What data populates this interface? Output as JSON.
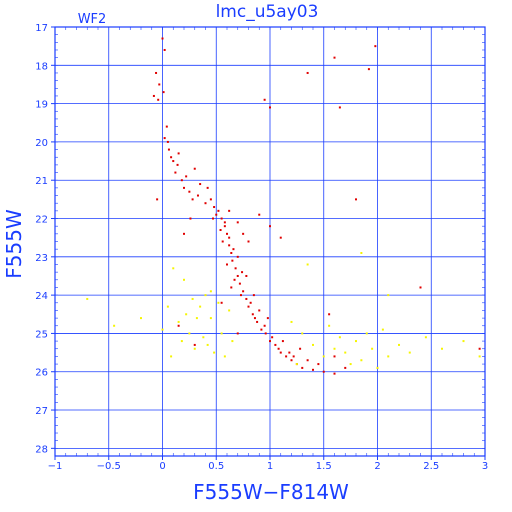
{
  "chart_data": {
    "type": "scatter",
    "title": "lmc_u5ay03",
    "chip_label": "WF2",
    "xlabel": "F555W−F814W",
    "ylabel": "F555W",
    "xlim": [
      -1,
      3
    ],
    "ylim": [
      28.2,
      17
    ],
    "y_inverted": true,
    "grid": true,
    "x_ticks": [
      {
        "value": -1,
        "label": "−1"
      },
      {
        "value": -0.5,
        "label": "−0.5"
      },
      {
        "value": 0,
        "label": "0"
      },
      {
        "value": 0.5,
        "label": "0.5"
      },
      {
        "value": 1,
        "label": "1"
      },
      {
        "value": 1.5,
        "label": "1.5"
      },
      {
        "value": 2,
        "label": "2"
      },
      {
        "value": 2.5,
        "label": "2.5"
      },
      {
        "value": 3,
        "label": "3"
      }
    ],
    "y_ticks": [
      {
        "value": 17,
        "label": "17"
      },
      {
        "value": 18,
        "label": "18"
      },
      {
        "value": 19,
        "label": "19"
      },
      {
        "value": 20,
        "label": "20"
      },
      {
        "value": 21,
        "label": "21"
      },
      {
        "value": 22,
        "label": "22"
      },
      {
        "value": 23,
        "label": "23"
      },
      {
        "value": 24,
        "label": "24"
      },
      {
        "value": 25,
        "label": "25"
      },
      {
        "value": 26,
        "label": "26"
      },
      {
        "value": 27,
        "label": "27"
      },
      {
        "value": 28,
        "label": "28"
      }
    ],
    "colors": {
      "axis": "#1a3dff",
      "grid": "#1a3dff",
      "series_red": "#e00000",
      "series_yellow": "#f5f500"
    },
    "series": [
      {
        "color": "#e00000",
        "points": [
          [
            -0.06,
            18.2
          ],
          [
            -0.03,
            18.5
          ],
          [
            0.0,
            17.3
          ],
          [
            0.02,
            17.6
          ],
          [
            -0.08,
            18.8
          ],
          [
            -0.04,
            18.9
          ],
          [
            0.01,
            18.7
          ],
          [
            0.04,
            19.6
          ],
          [
            0.02,
            19.9
          ],
          [
            0.05,
            20.0
          ],
          [
            0.06,
            20.2
          ],
          [
            0.08,
            20.4
          ],
          [
            0.1,
            20.5
          ],
          [
            0.14,
            20.6
          ],
          [
            0.12,
            20.8
          ],
          [
            0.18,
            21.0
          ],
          [
            0.2,
            21.2
          ],
          [
            0.25,
            21.3
          ],
          [
            0.28,
            21.5
          ],
          [
            0.33,
            21.4
          ],
          [
            0.4,
            21.6
          ],
          [
            0.45,
            21.5
          ],
          [
            0.48,
            21.7
          ],
          [
            0.52,
            21.8
          ],
          [
            0.55,
            22.0
          ],
          [
            0.58,
            22.2
          ],
          [
            0.6,
            22.4
          ],
          [
            0.62,
            22.7
          ],
          [
            0.64,
            22.9
          ],
          [
            0.65,
            23.1
          ],
          [
            0.68,
            23.3
          ],
          [
            0.7,
            23.5
          ],
          [
            0.72,
            23.7
          ],
          [
            0.75,
            23.9
          ],
          [
            0.78,
            24.1
          ],
          [
            0.8,
            24.3
          ],
          [
            0.84,
            24.5
          ],
          [
            0.88,
            24.7
          ],
          [
            0.92,
            24.9
          ],
          [
            0.96,
            25.0
          ],
          [
            1.0,
            25.2
          ],
          [
            1.05,
            25.3
          ],
          [
            1.1,
            25.5
          ],
          [
            1.15,
            25.6
          ],
          [
            1.2,
            25.7
          ],
          [
            1.25,
            25.8
          ],
          [
            1.3,
            25.9
          ],
          [
            1.4,
            25.95
          ],
          [
            1.5,
            26.0
          ],
          [
            1.6,
            26.05
          ],
          [
            1.7,
            25.9
          ],
          [
            0.62,
            22.5
          ],
          [
            0.66,
            22.8
          ],
          [
            0.7,
            23.0
          ],
          [
            0.74,
            23.4
          ],
          [
            0.6,
            23.2
          ],
          [
            0.67,
            23.6
          ],
          [
            0.73,
            24.0
          ],
          [
            0.82,
            24.2
          ],
          [
            0.86,
            24.6
          ],
          [
            0.9,
            24.4
          ],
          [
            0.95,
            24.8
          ],
          [
            1.02,
            25.1
          ],
          [
            1.08,
            25.4
          ],
          [
            1.12,
            25.2
          ],
          [
            1.18,
            25.5
          ],
          [
            1.22,
            25.6
          ],
          [
            1.28,
            25.4
          ],
          [
            1.35,
            25.7
          ],
          [
            1.45,
            25.8
          ],
          [
            0.56,
            22.6
          ],
          [
            0.58,
            22.1
          ],
          [
            0.64,
            23.8
          ],
          [
            0.78,
            23.5
          ],
          [
            0.85,
            24.0
          ],
          [
            0.98,
            24.6
          ],
          [
            0.15,
            20.3
          ],
          [
            0.22,
            20.9
          ],
          [
            0.35,
            21.1
          ],
          [
            0.42,
            21.2
          ],
          [
            0.3,
            20.7
          ],
          [
            0.5,
            21.9
          ],
          [
            0.54,
            22.3
          ],
          [
            0.47,
            22.0
          ],
          [
            0.62,
            21.8
          ],
          [
            0.7,
            22.1
          ],
          [
            0.75,
            22.4
          ],
          [
            0.8,
            22.6
          ],
          [
            0.9,
            21.9
          ],
          [
            1.0,
            22.2
          ],
          [
            1.1,
            22.5
          ],
          [
            0.26,
            22.0
          ],
          [
            0.2,
            22.4
          ],
          [
            0.95,
            18.9
          ],
          [
            1.0,
            19.1
          ],
          [
            1.35,
            18.2
          ],
          [
            1.65,
            19.1
          ],
          [
            1.6,
            17.8
          ],
          [
            1.92,
            18.1
          ],
          [
            1.98,
            17.5
          ],
          [
            1.8,
            21.5
          ],
          [
            2.4,
            23.8
          ],
          [
            2.95,
            25.4
          ],
          [
            0.7,
            25.0
          ],
          [
            0.3,
            25.3
          ],
          [
            0.15,
            24.8
          ],
          [
            0.55,
            24.2
          ],
          [
            1.6,
            25.6
          ],
          [
            2.0,
            25.9
          ],
          [
            1.55,
            24.5
          ],
          [
            -0.05,
            21.5
          ]
        ]
      },
      {
        "color": "#f5f500",
        "points": [
          [
            0.0,
            24.9
          ],
          [
            0.05,
            24.3
          ],
          [
            0.1,
            23.3
          ],
          [
            0.15,
            24.7
          ],
          [
            0.18,
            25.2
          ],
          [
            0.22,
            24.5
          ],
          [
            0.25,
            25.0
          ],
          [
            0.28,
            24.1
          ],
          [
            0.3,
            25.4
          ],
          [
            0.32,
            24.6
          ],
          [
            0.35,
            24.3
          ],
          [
            0.38,
            25.1
          ],
          [
            0.4,
            24.0
          ],
          [
            0.42,
            25.3
          ],
          [
            0.45,
            24.6
          ],
          [
            0.48,
            25.5
          ],
          [
            0.52,
            24.2
          ],
          [
            0.55,
            25.0
          ],
          [
            0.58,
            25.6
          ],
          [
            0.62,
            24.4
          ],
          [
            0.65,
            25.2
          ],
          [
            -0.45,
            24.8
          ],
          [
            -0.2,
            24.6
          ],
          [
            -0.7,
            24.1
          ],
          [
            0.08,
            25.6
          ],
          [
            0.2,
            23.6
          ],
          [
            0.45,
            23.9
          ],
          [
            1.2,
            24.7
          ],
          [
            1.3,
            25.0
          ],
          [
            1.4,
            25.3
          ],
          [
            1.5,
            25.6
          ],
          [
            1.6,
            25.4
          ],
          [
            1.65,
            25.1
          ],
          [
            1.7,
            25.5
          ],
          [
            1.75,
            25.8
          ],
          [
            1.8,
            25.2
          ],
          [
            1.85,
            25.7
          ],
          [
            1.9,
            25.0
          ],
          [
            1.95,
            25.4
          ],
          [
            2.0,
            25.9
          ],
          [
            2.05,
            24.9
          ],
          [
            2.1,
            25.6
          ],
          [
            2.2,
            25.3
          ],
          [
            2.3,
            25.5
          ],
          [
            2.45,
            25.1
          ],
          [
            2.6,
            25.4
          ],
          [
            2.8,
            25.2
          ],
          [
            2.95,
            25.6
          ],
          [
            1.35,
            23.2
          ],
          [
            1.85,
            22.9
          ],
          [
            2.1,
            24.0
          ],
          [
            1.55,
            24.8
          ],
          [
            1.25,
            25.8
          ]
        ]
      }
    ]
  }
}
